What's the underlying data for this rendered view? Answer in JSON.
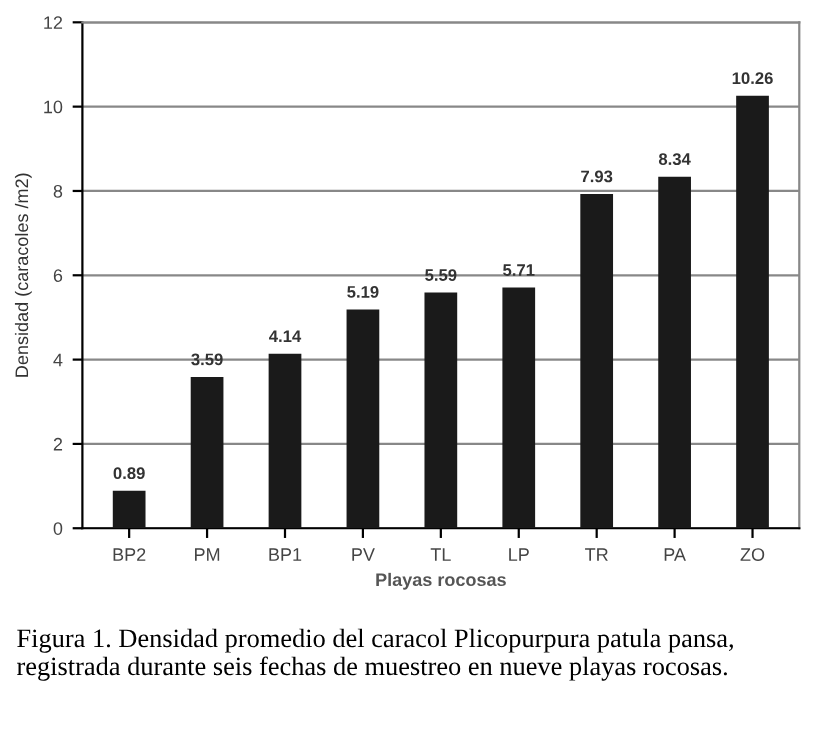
{
  "chart_data": {
    "type": "bar",
    "xlabel": "Playas rocosas",
    "ylabel": "Densidad (caracoles /m2)",
    "categories": [
      "BP2",
      "PM",
      "BP1",
      "PV",
      "TL",
      "LP",
      "TR",
      "PA",
      "ZO"
    ],
    "values": [
      0.89,
      3.59,
      4.14,
      5.19,
      5.59,
      5.71,
      7.93,
      8.34,
      10.26
    ],
    "color": "#1a1a1a",
    "ylim": [
      0,
      12
    ],
    "yticks": [
      0,
      2,
      4,
      6,
      8,
      10,
      12
    ],
    "grid": "y",
    "data_labels": true,
    "annotations": [
      "Figura 1. Densidad promedio del caracol Plicopurpura patula pansa, registrada durante seis fechas de muestreo en nueve playas rocosas."
    ]
  }
}
